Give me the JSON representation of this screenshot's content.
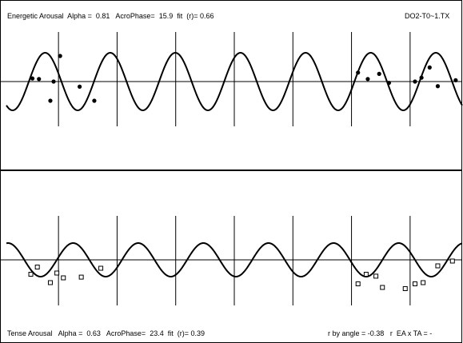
{
  "top_panel": {
    "title": "Energetic Arousal",
    "alpha_label": "Alpha =",
    "alpha_value": "0.81",
    "acro_label": "AcroPhase=",
    "acro_value": "15.9",
    "fit_label": "fit  (r)=",
    "fit_value": "0.66",
    "file_label": "DO2-T0~1.TX"
  },
  "bottom_panel": {
    "title": "Tense Arousal",
    "alpha_label": "Alpha =",
    "alpha_value": "0.63",
    "acro_label": "AcroPhase=",
    "acro_value": "23.4",
    "fit_label": "fit  (r)=",
    "fit_value": "0.39",
    "angle_label": "r by angle =",
    "angle_value": "-0.38",
    "ea_ta_label": "r  EA x TA = -"
  },
  "colors": {
    "ink": "#000000",
    "background": "#ffffff"
  },
  "chart_data": [
    {
      "type": "scatter",
      "series": [
        {
          "name": "Energetic Arousal",
          "marker": "filled-circle",
          "points": [
            [
              0.8,
              0.12
            ],
            [
              1.0,
              0.1
            ],
            [
              1.35,
              -0.75
            ],
            [
              1.45,
              0.0
            ],
            [
              1.65,
              1.0
            ],
            [
              2.25,
              -0.2
            ],
            [
              2.7,
              -0.75
            ],
            [
              10.8,
              0.35
            ],
            [
              11.1,
              0.1
            ],
            [
              11.45,
              0.3
            ],
            [
              11.75,
              -0.05
            ],
            [
              12.55,
              0.0
            ],
            [
              12.75,
              0.15
            ],
            [
              13.0,
              0.55
            ],
            [
              13.25,
              -0.18
            ],
            [
              13.8,
              0.05
            ]
          ]
        }
      ],
      "fit_curve": {
        "shape": "cosine",
        "period": 2,
        "acrophase": 15.9,
        "alpha": 0.81,
        "fit_r": 0.66
      },
      "x_range": [
        0,
        14
      ],
      "day_boundaries": [
        1.6,
        3.4,
        5.2,
        7.0,
        8.8,
        10.6,
        12.4,
        14.2
      ],
      "baseline": 0
    },
    {
      "type": "scatter",
      "series": [
        {
          "name": "Tense Arousal",
          "marker": "open-square",
          "points": [
            [
              0.75,
              -0.6
            ],
            [
              0.95,
              -0.3
            ],
            [
              1.35,
              -0.95
            ],
            [
              1.55,
              -0.55
            ],
            [
              1.75,
              -0.75
            ],
            [
              2.3,
              -0.72
            ],
            [
              2.9,
              -0.35
            ],
            [
              10.8,
              -1.0
            ],
            [
              11.05,
              -0.6
            ],
            [
              11.35,
              -0.68
            ],
            [
              11.55,
              -1.15
            ],
            [
              12.25,
              -1.2
            ],
            [
              12.55,
              -1.0
            ],
            [
              12.8,
              -0.95
            ],
            [
              13.25,
              -0.25
            ],
            [
              13.7,
              -0.05
            ]
          ]
        }
      ],
      "fit_curve": {
        "shape": "cosine",
        "period": 2,
        "acrophase": 23.4,
        "alpha": 0.63,
        "fit_r": 0.39
      },
      "x_range": [
        0,
        14
      ],
      "day_boundaries": [
        1.6,
        3.4,
        5.2,
        7.0,
        8.8,
        10.6,
        12.4,
        14.2
      ],
      "baseline": 0
    }
  ]
}
